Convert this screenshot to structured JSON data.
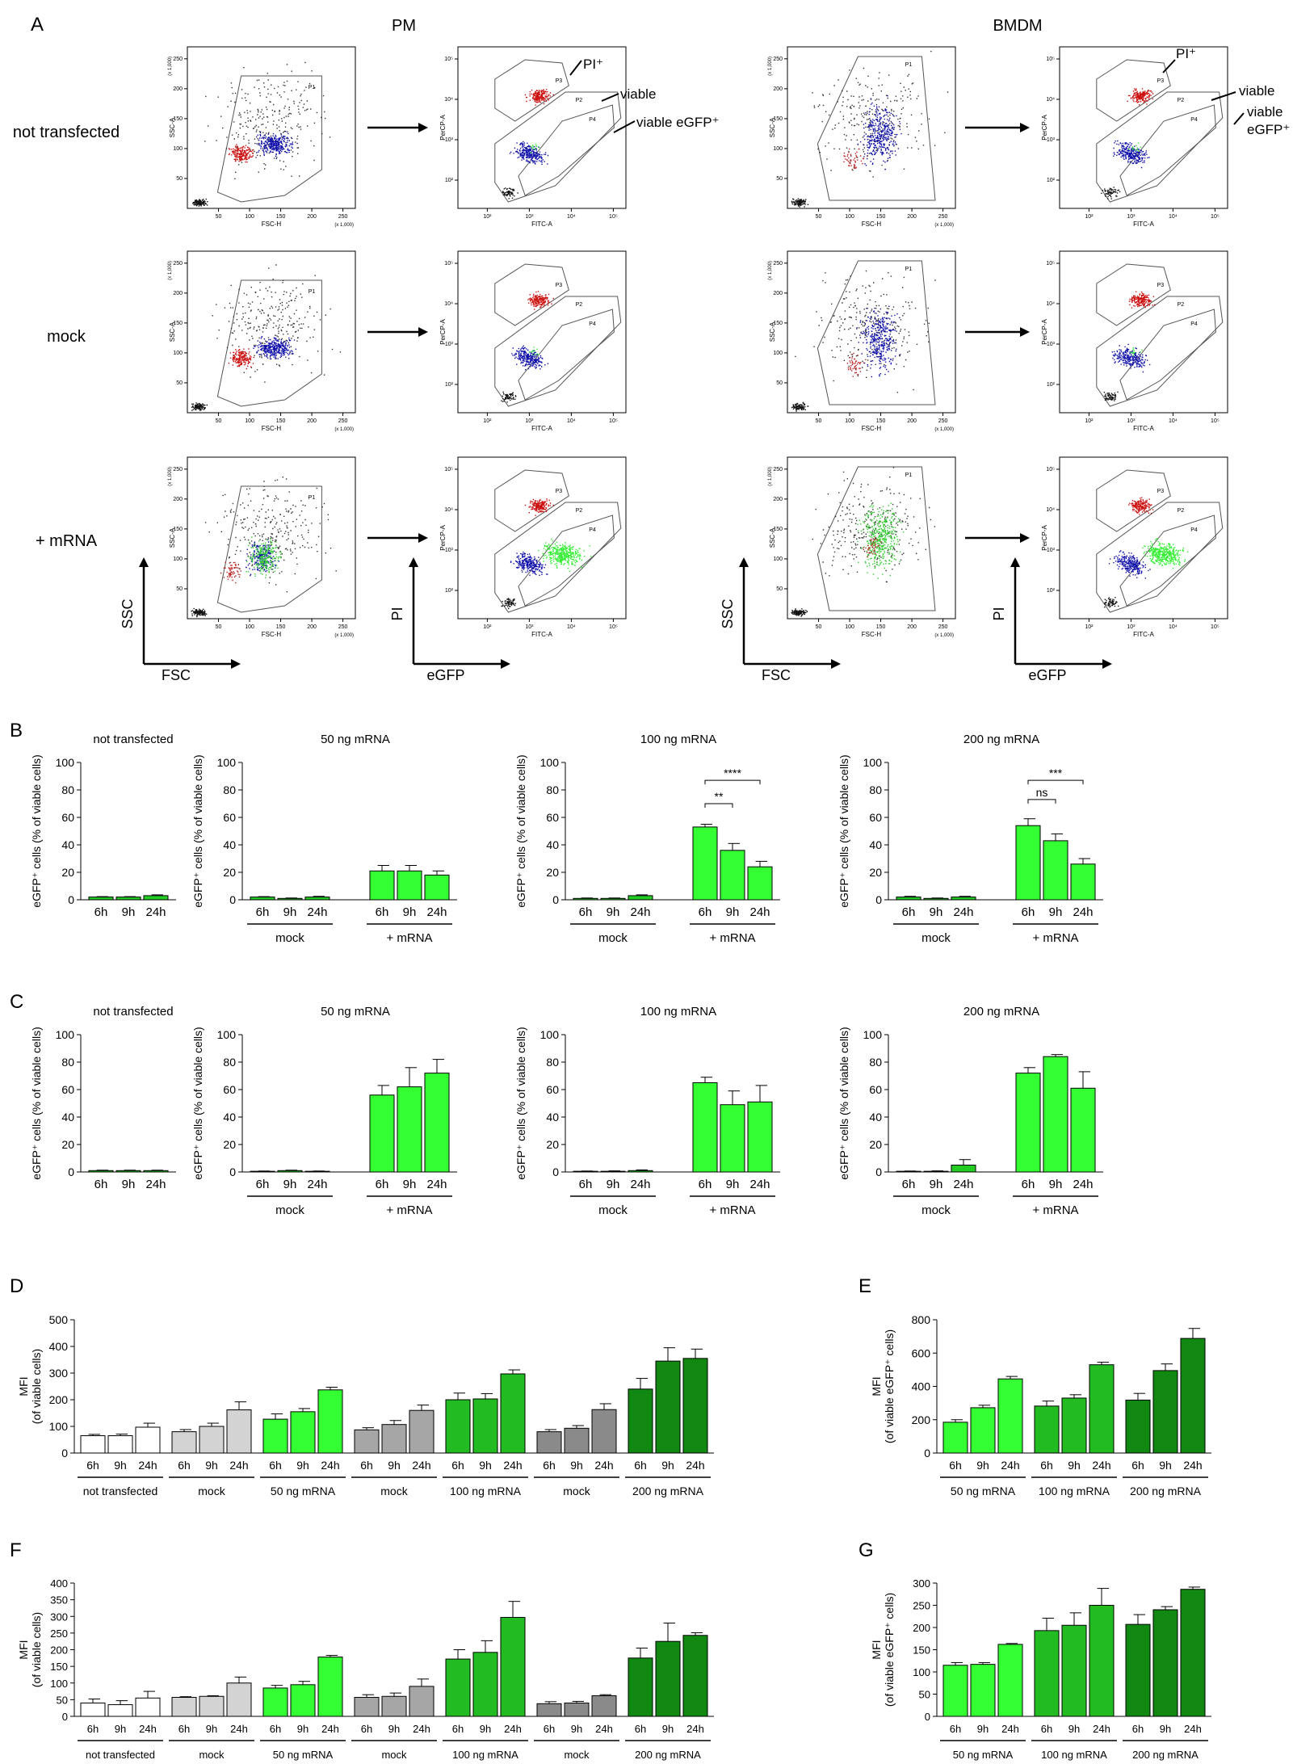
{
  "figure": {
    "panel_labels": [
      "A",
      "B",
      "C",
      "D",
      "E",
      "F",
      "G"
    ],
    "panel_a": {
      "column_titles": [
        "PM",
        "BMDM"
      ],
      "row_labels": [
        "not transfected",
        "mock",
        "+ mRNA"
      ],
      "scatter_axis_text": {
        "ssc_a": "SSC-A",
        "fsc_h": "FSC-H",
        "percp_a": "PerCP-A",
        "fitc_a": "FITC-A",
        "scale": "(x 1,000)",
        "fsc_ticks": [
          "50",
          "100",
          "150",
          "200",
          "250"
        ],
        "ssc_ticks": [
          "50",
          "100",
          "150",
          "200",
          "250"
        ],
        "log_ticks": [
          "10²",
          "10³",
          "10⁴",
          "10⁵"
        ],
        "gates": [
          "P1",
          "P2",
          "P3",
          "P4"
        ]
      },
      "callouts": {
        "pi": "PI⁺",
        "viable": "viable",
        "viable_egfp": "viable eGFP⁺",
        "viable2": "viable",
        "egfp2": "eGFP⁺"
      },
      "axis_arrows": {
        "ssc": "SSC",
        "fsc": "FSC",
        "pi": "PI",
        "egfp": "eGFP"
      }
    }
  },
  "chart_data": [
    {
      "id": "B1",
      "type": "bar",
      "title": "not transfected",
      "ylabel": "eGFP⁺ cells (% of viable cells)",
      "ylim": [
        0,
        100
      ],
      "yticks": [
        0,
        20,
        40,
        60,
        80,
        100
      ],
      "categories": [
        "6h",
        "9h",
        "24h"
      ],
      "groups": [],
      "values": [
        2,
        2,
        3
      ],
      "errors": [
        0.3,
        0.3,
        0.6
      ],
      "colors": [
        "#22cc22",
        "#22cc22",
        "#22cc22"
      ],
      "annotations": []
    },
    {
      "id": "B2",
      "type": "bar",
      "title": "50 ng mRNA",
      "ylabel": "eGFP⁺ cells (% of viable cells)",
      "ylim": [
        0,
        100
      ],
      "yticks": [
        0,
        20,
        40,
        60,
        80,
        100
      ],
      "categories": [
        "6h",
        "9h",
        "24h",
        "6h",
        "9h",
        "24h"
      ],
      "groups": [
        "mock",
        "+ mRNA"
      ],
      "values": [
        2,
        1,
        2,
        21,
        21,
        18
      ],
      "errors": [
        0.3,
        0.3,
        0.5,
        4,
        4,
        3
      ],
      "colors": [
        "#22cc22",
        "#22cc22",
        "#22cc22",
        "#33ff33",
        "#33ff33",
        "#33ff33"
      ],
      "annotations": []
    },
    {
      "id": "B3",
      "type": "bar",
      "title": "100 ng mRNA",
      "ylabel": "eGFP⁺ cells (% of viable cells)",
      "ylim": [
        0,
        100
      ],
      "yticks": [
        0,
        20,
        40,
        60,
        80,
        100
      ],
      "categories": [
        "6h",
        "9h",
        "24h",
        "6h",
        "9h",
        "24h"
      ],
      "groups": [
        "mock",
        "+ mRNA"
      ],
      "values": [
        1,
        1,
        3,
        53,
        36,
        24
      ],
      "errors": [
        0.3,
        0.3,
        0.6,
        2,
        5,
        4
      ],
      "colors": [
        "#22cc22",
        "#22cc22",
        "#22cc22",
        "#33ff33",
        "#33ff33",
        "#33ff33"
      ],
      "annotations": [
        {
          "text": "**",
          "from": 3,
          "to": 4,
          "level": 70
        },
        {
          "text": "****",
          "from": 3,
          "to": 5,
          "level": 87
        }
      ]
    },
    {
      "id": "B4",
      "type": "bar",
      "title": "200 ng mRNA",
      "ylabel": "eGFP⁺ cells (% of viable cells)",
      "ylim": [
        0,
        100
      ],
      "yticks": [
        0,
        20,
        40,
        60,
        80,
        100
      ],
      "categories": [
        "6h",
        "9h",
        "24h",
        "6h",
        "9h",
        "24h"
      ],
      "groups": [
        "mock",
        "+ mRNA"
      ],
      "values": [
        2,
        1,
        2,
        54,
        43,
        26
      ],
      "errors": [
        0.5,
        0.3,
        0.5,
        5,
        5,
        4
      ],
      "colors": [
        "#22cc22",
        "#22cc22",
        "#22cc22",
        "#33ff33",
        "#33ff33",
        "#33ff33"
      ],
      "annotations": [
        {
          "text": "ns",
          "from": 3,
          "to": 4,
          "level": 73
        },
        {
          "text": "***",
          "from": 3,
          "to": 5,
          "level": 87
        }
      ]
    },
    {
      "id": "C1",
      "type": "bar",
      "title": "not transfected",
      "ylabel": "eGFP⁺ cells (% of viable cells)",
      "ylim": [
        0,
        100
      ],
      "yticks": [
        0,
        20,
        40,
        60,
        80,
        100
      ],
      "categories": [
        "6h",
        "9h",
        "24h"
      ],
      "groups": [],
      "values": [
        1,
        1,
        1
      ],
      "errors": [
        0.3,
        0.3,
        0.3
      ],
      "colors": [
        "#22cc22",
        "#22cc22",
        "#22cc22"
      ],
      "annotations": []
    },
    {
      "id": "C2",
      "type": "bar",
      "title": "50 ng mRNA",
      "ylabel": "eGFP⁺ cells (% of viable cells)",
      "ylim": [
        0,
        100
      ],
      "yticks": [
        0,
        20,
        40,
        60,
        80,
        100
      ],
      "categories": [
        "6h",
        "9h",
        "24h",
        "6h",
        "9h",
        "24h"
      ],
      "groups": [
        "mock",
        "+ mRNA"
      ],
      "values": [
        0.5,
        1,
        0.5,
        56,
        62,
        72
      ],
      "errors": [
        0.2,
        0.3,
        0.2,
        7,
        14,
        10
      ],
      "colors": [
        "#22cc22",
        "#22cc22",
        "#22cc22",
        "#33ff33",
        "#33ff33",
        "#33ff33"
      ],
      "annotations": []
    },
    {
      "id": "C3",
      "type": "bar",
      "title": "100 ng mRNA",
      "ylabel": "eGFP⁺ cells (% of viable cells)",
      "ylim": [
        0,
        100
      ],
      "yticks": [
        0,
        20,
        40,
        60,
        80,
        100
      ],
      "categories": [
        "6h",
        "9h",
        "24h",
        "6h",
        "9h",
        "24h"
      ],
      "groups": [
        "mock",
        "+ mRNA"
      ],
      "values": [
        0.5,
        0.5,
        1,
        65,
        49,
        51
      ],
      "errors": [
        0.2,
        0.3,
        0.5,
        4,
        10,
        12
      ],
      "colors": [
        "#22cc22",
        "#22cc22",
        "#22cc22",
        "#33ff33",
        "#33ff33",
        "#33ff33"
      ],
      "annotations": []
    },
    {
      "id": "C4",
      "type": "bar",
      "title": "200 ng mRNA",
      "ylabel": "eGFP⁺ cells (% of viable cells)",
      "ylim": [
        0,
        100
      ],
      "yticks": [
        0,
        20,
        40,
        60,
        80,
        100
      ],
      "categories": [
        "6h",
        "9h",
        "24h",
        "6h",
        "9h",
        "24h"
      ],
      "groups": [
        "mock",
        "+ mRNA"
      ],
      "values": [
        0.5,
        0.5,
        5,
        72,
        84,
        61
      ],
      "errors": [
        0.2,
        0.3,
        4,
        4,
        1.5,
        12
      ],
      "colors": [
        "#22cc22",
        "#22cc22",
        "#22cc22",
        "#33ff33",
        "#33ff33",
        "#33ff33"
      ],
      "annotations": []
    },
    {
      "id": "D",
      "type": "bar",
      "title": "",
      "ylabel": "MFI\n(of viable cells)",
      "ylim": [
        0,
        500
      ],
      "yticks": [
        0,
        100,
        200,
        300,
        400,
        500
      ],
      "categories": [
        "6h",
        "9h",
        "24h",
        "6h",
        "9h",
        "24h",
        "6h",
        "9h",
        "24h",
        "6h",
        "9h",
        "24h",
        "6h",
        "9h",
        "24h",
        "6h",
        "9h",
        "24h",
        "6h",
        "9h",
        "24h"
      ],
      "groups": [
        "not transfected",
        "mock",
        "50 ng mRNA",
        "mock",
        "100 ng mRNA",
        "mock",
        "200 ng mRNA"
      ],
      "values": [
        65,
        65,
        97,
        80,
        100,
        162,
        127,
        155,
        237,
        87,
        107,
        160,
        200,
        203,
        297,
        80,
        93,
        163,
        240,
        345,
        355
      ],
      "errors": [
        5,
        6,
        15,
        8,
        12,
        30,
        20,
        12,
        10,
        8,
        15,
        20,
        25,
        20,
        15,
        8,
        10,
        22,
        40,
        50,
        35
      ],
      "colors": [
        "#ffffff",
        "#ffffff",
        "#ffffff",
        "#d3d3d3",
        "#d3d3d3",
        "#d3d3d3",
        "#33ff33",
        "#33ff33",
        "#33ff33",
        "#a6a6a6",
        "#a6a6a6",
        "#a6a6a6",
        "#22bb22",
        "#22bb22",
        "#22bb22",
        "#8a8a8a",
        "#8a8a8a",
        "#8a8a8a",
        "#118811",
        "#118811",
        "#118811"
      ],
      "annotations": []
    },
    {
      "id": "E",
      "type": "bar",
      "title": "",
      "ylabel": "MFI\n(of viable eGFP⁺ cells)",
      "ylim": [
        0,
        800
      ],
      "yticks": [
        0,
        200,
        400,
        600,
        800
      ],
      "categories": [
        "6h",
        "9h",
        "24h",
        "6h",
        "9h",
        "24h",
        "6h",
        "9h",
        "24h"
      ],
      "groups": [
        "50 ng mRNA",
        "100 ng mRNA",
        "200 ng mRNA"
      ],
      "values": [
        185,
        272,
        445,
        282,
        330,
        530,
        318,
        495,
        688
      ],
      "errors": [
        15,
        15,
        15,
        30,
        20,
        15,
        40,
        40,
        60
      ],
      "colors": [
        "#33ff33",
        "#33ff33",
        "#33ff33",
        "#22bb22",
        "#22bb22",
        "#22bb22",
        "#118811",
        "#118811",
        "#118811"
      ],
      "annotations": []
    },
    {
      "id": "F",
      "type": "bar",
      "title": "",
      "ylabel": "MFI\n(of viable cells)",
      "ylim": [
        0,
        400
      ],
      "yticks": [
        0,
        50,
        100,
        150,
        200,
        250,
        300,
        350,
        400
      ],
      "categories": [
        "6h",
        "9h",
        "24h",
        "6h",
        "9h",
        "24h",
        "6h",
        "9h",
        "24h",
        "6h",
        "9h",
        "24h",
        "6h",
        "9h",
        "24h",
        "6h",
        "9h",
        "24h",
        "6h",
        "9h",
        "24h"
      ],
      "groups": [
        "not transfected",
        "mock",
        "50 ng mRNA",
        "mock",
        "100 ng mRNA",
        "mock",
        "200 ng mRNA"
      ],
      "values": [
        40,
        35,
        55,
        57,
        60,
        100,
        85,
        95,
        178,
        57,
        60,
        90,
        172,
        192,
        297,
        38,
        40,
        62,
        175,
        225,
        243
      ],
      "errors": [
        12,
        12,
        20,
        2,
        2,
        18,
        8,
        10,
        5,
        8,
        10,
        22,
        28,
        35,
        48,
        6,
        5,
        3,
        30,
        55,
        8
      ],
      "colors": [
        "#ffffff",
        "#ffffff",
        "#ffffff",
        "#d3d3d3",
        "#d3d3d3",
        "#d3d3d3",
        "#33ff33",
        "#33ff33",
        "#33ff33",
        "#a6a6a6",
        "#a6a6a6",
        "#a6a6a6",
        "#22bb22",
        "#22bb22",
        "#22bb22",
        "#8a8a8a",
        "#8a8a8a",
        "#8a8a8a",
        "#118811",
        "#118811",
        "#118811"
      ],
      "annotations": []
    },
    {
      "id": "G",
      "type": "bar",
      "title": "",
      "ylabel": "MFI\n(of viable eGFP⁺ cells)",
      "ylim": [
        0,
        300
      ],
      "yticks": [
        0,
        50,
        100,
        150,
        200,
        250,
        300
      ],
      "categories": [
        "6h",
        "9h",
        "24h",
        "6h",
        "9h",
        "24h",
        "6h",
        "9h",
        "24h"
      ],
      "groups": [
        "50 ng mRNA",
        "100 ng mRNA",
        "200 ng mRNA"
      ],
      "values": [
        115,
        117,
        162,
        193,
        205,
        250,
        207,
        240,
        286
      ],
      "errors": [
        6,
        4,
        2,
        28,
        28,
        38,
        22,
        7,
        5
      ],
      "colors": [
        "#33ff33",
        "#33ff33",
        "#33ff33",
        "#22bb22",
        "#22bb22",
        "#22bb22",
        "#118811",
        "#118811",
        "#118811"
      ],
      "annotations": []
    }
  ]
}
